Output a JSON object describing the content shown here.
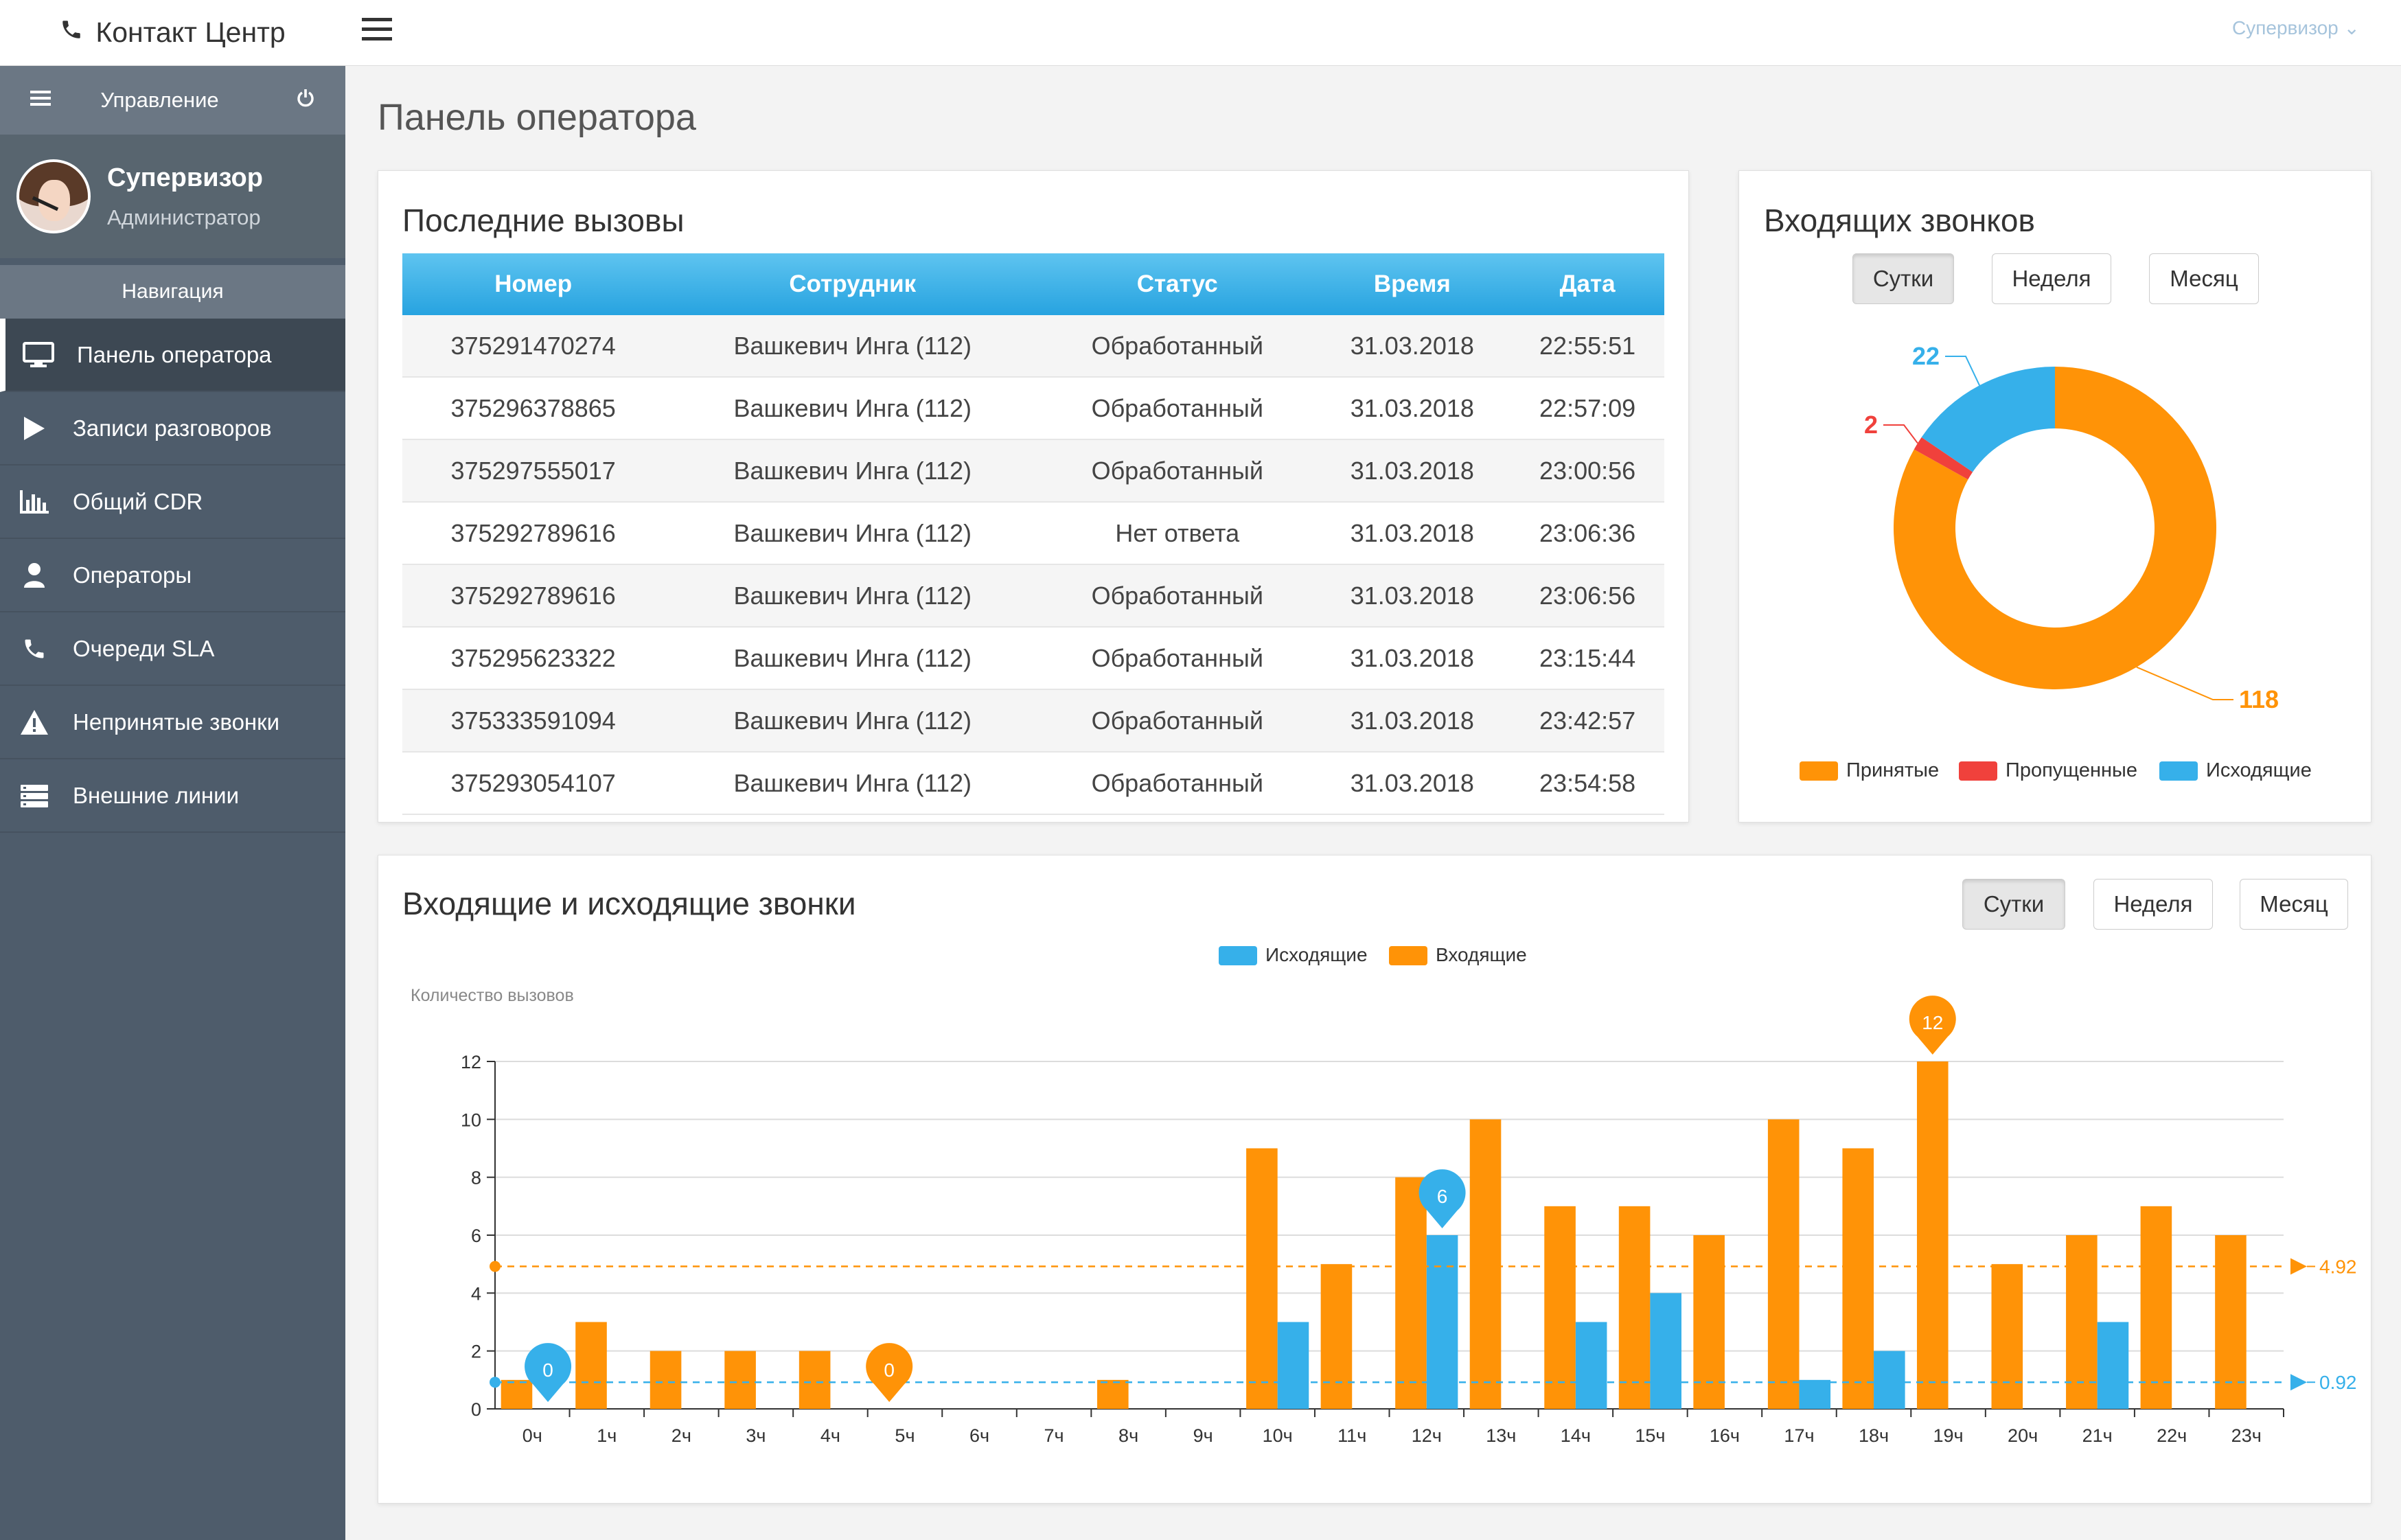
{
  "app": {
    "title": "Контакт Центр"
  },
  "topbar": {
    "user_menu": "Супервизор"
  },
  "sidebar": {
    "management": "Управление",
    "user": {
      "name": "Супервизор",
      "role": "Администратор"
    },
    "nav_header": "Навигация",
    "items": [
      {
        "label": "Панель оператора",
        "icon": "monitor-icon",
        "active": true
      },
      {
        "label": "Записи разговоров",
        "icon": "play-icon"
      },
      {
        "label": "Общий CDR",
        "icon": "bar-chart-icon"
      },
      {
        "label": "Операторы",
        "icon": "user-icon"
      },
      {
        "label": "Очереди SLA",
        "icon": "phone-icon"
      },
      {
        "label": "Непринятые звонки",
        "icon": "warning-icon"
      },
      {
        "label": "Внешние линии",
        "icon": "server-icon"
      }
    ]
  },
  "page": {
    "title": "Панель оператора"
  },
  "calls": {
    "title": "Последние вызовы",
    "columns": [
      "Номер",
      "Сотрудник",
      "Статус",
      "Время",
      "Дата"
    ],
    "rows": [
      [
        "375291470274",
        "Вашкевич Инга (112)",
        "Обработанный",
        "31.03.2018",
        "22:55:51"
      ],
      [
        "375296378865",
        "Вашкевич Инга (112)",
        "Обработанный",
        "31.03.2018",
        "22:57:09"
      ],
      [
        "375297555017",
        "Вашкевич Инга (112)",
        "Обработанный",
        "31.03.2018",
        "23:00:56"
      ],
      [
        "375292789616",
        "Вашкевич Инга (112)",
        "Нет ответа",
        "31.03.2018",
        "23:06:36"
      ],
      [
        "375292789616",
        "Вашкевич Инга (112)",
        "Обработанный",
        "31.03.2018",
        "23:06:56"
      ],
      [
        "375295623322",
        "Вашкевич Инга (112)",
        "Обработанный",
        "31.03.2018",
        "23:15:44"
      ],
      [
        "375333591094",
        "Вашкевич Инга (112)",
        "Обработанный",
        "31.03.2018",
        "23:42:57"
      ],
      [
        "375293054107",
        "Вашкевич Инга (112)",
        "Обработанный",
        "31.03.2018",
        "23:54:58"
      ]
    ]
  },
  "donut": {
    "title": "Входящих звонков",
    "buttons": [
      "Сутки",
      "Неделя",
      "Месяц"
    ],
    "selected": "Сутки"
  },
  "linechart": {
    "title": "Входящие и исходящие звонки",
    "buttons": [
      "Сутки",
      "Неделя",
      "Месяц"
    ],
    "selected": "Сутки"
  },
  "colors": {
    "orange": "#ff9307",
    "blue": "#36b0ea",
    "red": "#f0413c",
    "header_blue": "#2aa5e1"
  },
  "chart_data": [
    {
      "type": "pie",
      "title": "",
      "labels": [
        "Принятые",
        "Пропущенные",
        "Исходящие"
      ],
      "values": [
        118,
        2,
        22
      ],
      "colors": [
        "#ff9307",
        "#f0413c",
        "#36b0ea"
      ],
      "legend": "bottom"
    },
    {
      "type": "bar",
      "title": "",
      "ylabel": "Количество вызовов",
      "xlabel": "",
      "categories": [
        "0ч",
        "1ч",
        "2ч",
        "3ч",
        "4ч",
        "5ч",
        "6ч",
        "7ч",
        "8ч",
        "9ч",
        "10ч",
        "11ч",
        "12ч",
        "13ч",
        "14ч",
        "15ч",
        "16ч",
        "17ч",
        "18ч",
        "19ч",
        "20ч",
        "21ч",
        "22ч",
        "23ч"
      ],
      "series": [
        {
          "name": "Исходящие",
          "color": "#36b0ea",
          "values": [
            0,
            0,
            0,
            0,
            0,
            0,
            0,
            0,
            0,
            0,
            3,
            0,
            6,
            0,
            3,
            4,
            0,
            1,
            2,
            0,
            0,
            3,
            0,
            0
          ]
        },
        {
          "name": "Входящие",
          "color": "#ff9307",
          "values": [
            1,
            3,
            2,
            2,
            2,
            0,
            0,
            0,
            1,
            0,
            9,
            5,
            8,
            10,
            7,
            7,
            6,
            10,
            9,
            12,
            5,
            6,
            7,
            6
          ]
        }
      ],
      "ylim": [
        0,
        12
      ],
      "yticks": [
        0,
        2,
        4,
        6,
        8,
        10,
        12
      ],
      "grid": true,
      "legend": "top",
      "markers": [
        {
          "series": "Исходящие",
          "category": "0ч",
          "label": "0"
        },
        {
          "series": "Входящие",
          "category": "5ч",
          "label": "0"
        },
        {
          "series": "Исходящие",
          "category": "12ч",
          "label": "6"
        },
        {
          "series": "Входящие",
          "category": "19ч",
          "label": "12"
        }
      ],
      "averages": [
        {
          "series": "Входящие",
          "value": 4.92,
          "label": "4.92"
        },
        {
          "series": "Исходящие",
          "value": 0.92,
          "label": "0.92"
        }
      ]
    }
  ]
}
